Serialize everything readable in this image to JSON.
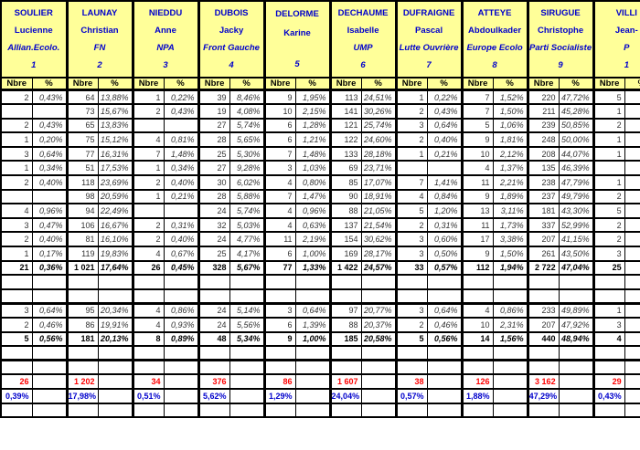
{
  "colors": {
    "header_background": "#FFFF99",
    "header_text": "#0000CC",
    "summary_count_text": "#FF0000",
    "summary_pct_text": "#0000CC",
    "grid": "#000000"
  },
  "table": {
    "subheaders": [
      "Nbre",
      "%"
    ],
    "candidates": [
      {
        "name": "SOULIER",
        "firstname": "Lucienne",
        "party": "Allian.Ecolo.",
        "number": "1"
      },
      {
        "name": "LAUNAY",
        "firstname": "Christian",
        "party": "FN",
        "number": "2"
      },
      {
        "name": "NIEDDU",
        "firstname": "Anne",
        "party": "NPA",
        "number": "3"
      },
      {
        "name": "DUBOIS",
        "firstname": "Jacky",
        "party": "Front Gauche",
        "number": "4"
      },
      {
        "name": "DELORME",
        "firstname": "Karine",
        "party": "",
        "number": "5"
      },
      {
        "name": "DECHAUME",
        "firstname": "Isabelle",
        "party": "UMP",
        "number": "6"
      },
      {
        "name": "DUFRAIGNE",
        "firstname": "Pascal",
        "party": "Lutte Ouvrière",
        "number": "7"
      },
      {
        "name": "ATTEYE",
        "firstname": "Abdoulkader",
        "party": "Europe Ecolo",
        "number": "8"
      },
      {
        "name": "SIRUGUE",
        "firstname": "Christophe",
        "party": "Parti Socialiste",
        "number": "9"
      },
      {
        "name": "VILLI",
        "firstname": "Jean-",
        "party": "P",
        "number": "1"
      }
    ],
    "rows": [
      {
        "style": "data",
        "cells": [
          [
            "2",
            "0,43%"
          ],
          [
            "64",
            "13,88%"
          ],
          [
            "1",
            "0,22%"
          ],
          [
            "39",
            "8,46%"
          ],
          [
            "9",
            "1,95%"
          ],
          [
            "113",
            "24,51%"
          ],
          [
            "1",
            "0,22%"
          ],
          [
            "7",
            "1,52%"
          ],
          [
            "220",
            "47,72%"
          ],
          [
            "5",
            ""
          ]
        ]
      },
      {
        "style": "data",
        "cells": [
          [
            "",
            ""
          ],
          [
            "73",
            "15,67%"
          ],
          [
            "2",
            "0,43%"
          ],
          [
            "19",
            "4,08%"
          ],
          [
            "10",
            "2,15%"
          ],
          [
            "141",
            "30,26%"
          ],
          [
            "2",
            "0,43%"
          ],
          [
            "7",
            "1,50%"
          ],
          [
            "211",
            "45,28%"
          ],
          [
            "1",
            ""
          ]
        ]
      },
      {
        "style": "data",
        "cells": [
          [
            "2",
            "0,43%"
          ],
          [
            "65",
            "13,83%"
          ],
          [
            "",
            ""
          ],
          [
            "27",
            "5,74%"
          ],
          [
            "6",
            "1,28%"
          ],
          [
            "121",
            "25,74%"
          ],
          [
            "3",
            "0,64%"
          ],
          [
            "5",
            "1,06%"
          ],
          [
            "239",
            "50,85%"
          ],
          [
            "2",
            ""
          ]
        ]
      },
      {
        "style": "data",
        "cells": [
          [
            "1",
            "0,20%"
          ],
          [
            "75",
            "15,12%"
          ],
          [
            "4",
            "0,81%"
          ],
          [
            "28",
            "5,65%"
          ],
          [
            "6",
            "1,21%"
          ],
          [
            "122",
            "24,60%"
          ],
          [
            "2",
            "0,40%"
          ],
          [
            "9",
            "1,81%"
          ],
          [
            "248",
            "50,00%"
          ],
          [
            "1",
            ""
          ]
        ]
      },
      {
        "style": "data",
        "cells": [
          [
            "3",
            "0,64%"
          ],
          [
            "77",
            "16,31%"
          ],
          [
            "7",
            "1,48%"
          ],
          [
            "25",
            "5,30%"
          ],
          [
            "7",
            "1,48%"
          ],
          [
            "133",
            "28,18%"
          ],
          [
            "1",
            "0,21%"
          ],
          [
            "10",
            "2,12%"
          ],
          [
            "208",
            "44,07%"
          ],
          [
            "1",
            ""
          ]
        ]
      },
      {
        "style": "data",
        "cells": [
          [
            "1",
            "0,34%"
          ],
          [
            "51",
            "17,53%"
          ],
          [
            "1",
            "0,34%"
          ],
          [
            "27",
            "9,28%"
          ],
          [
            "3",
            "1,03%"
          ],
          [
            "69",
            "23,71%"
          ],
          [
            "",
            ""
          ],
          [
            "4",
            "1,37%"
          ],
          [
            "135",
            "46,39%"
          ],
          [
            "",
            ""
          ]
        ]
      },
      {
        "style": "data",
        "cells": [
          [
            "2",
            "0,40%"
          ],
          [
            "118",
            "23,69%"
          ],
          [
            "2",
            "0,40%"
          ],
          [
            "30",
            "6,02%"
          ],
          [
            "4",
            "0,80%"
          ],
          [
            "85",
            "17,07%"
          ],
          [
            "7",
            "1,41%"
          ],
          [
            "11",
            "2,21%"
          ],
          [
            "238",
            "47,79%"
          ],
          [
            "1",
            ""
          ]
        ]
      },
      {
        "style": "data",
        "cells": [
          [
            "",
            ""
          ],
          [
            "98",
            "20,59%"
          ],
          [
            "1",
            "0,21%"
          ],
          [
            "28",
            "5,88%"
          ],
          [
            "7",
            "1,47%"
          ],
          [
            "90",
            "18,91%"
          ],
          [
            "4",
            "0,84%"
          ],
          [
            "9",
            "1,89%"
          ],
          [
            "237",
            "49,79%"
          ],
          [
            "2",
            ""
          ]
        ]
      },
      {
        "style": "data",
        "cells": [
          [
            "4",
            "0,96%"
          ],
          [
            "94",
            "22,49%"
          ],
          [
            "",
            ""
          ],
          [
            "24",
            "5,74%"
          ],
          [
            "4",
            "0,96%"
          ],
          [
            "88",
            "21,05%"
          ],
          [
            "5",
            "1,20%"
          ],
          [
            "13",
            "3,11%"
          ],
          [
            "181",
            "43,30%"
          ],
          [
            "5",
            ""
          ]
        ]
      },
      {
        "style": "data",
        "cells": [
          [
            "3",
            "0,47%"
          ],
          [
            "106",
            "16,67%"
          ],
          [
            "2",
            "0,31%"
          ],
          [
            "32",
            "5,03%"
          ],
          [
            "4",
            "0,63%"
          ],
          [
            "137",
            "21,54%"
          ],
          [
            "2",
            "0,31%"
          ],
          [
            "11",
            "1,73%"
          ],
          [
            "337",
            "52,99%"
          ],
          [
            "2",
            ""
          ]
        ]
      },
      {
        "style": "data",
        "cells": [
          [
            "2",
            "0,40%"
          ],
          [
            "81",
            "16,10%"
          ],
          [
            "2",
            "0,40%"
          ],
          [
            "24",
            "4,77%"
          ],
          [
            "11",
            "2,19%"
          ],
          [
            "154",
            "30,62%"
          ],
          [
            "3",
            "0,60%"
          ],
          [
            "17",
            "3,38%"
          ],
          [
            "207",
            "41,15%"
          ],
          [
            "2",
            ""
          ]
        ]
      },
      {
        "style": "data",
        "cells": [
          [
            "1",
            "0,17%"
          ],
          [
            "119",
            "19,83%"
          ],
          [
            "4",
            "0,67%"
          ],
          [
            "25",
            "4,17%"
          ],
          [
            "6",
            "1,00%"
          ],
          [
            "169",
            "28,17%"
          ],
          [
            "3",
            "0,50%"
          ],
          [
            "9",
            "1,50%"
          ],
          [
            "261",
            "43,50%"
          ],
          [
            "3",
            ""
          ]
        ]
      },
      {
        "style": "total",
        "cells": [
          [
            "21",
            "0,36%"
          ],
          [
            "1 021",
            "17,64%"
          ],
          [
            "26",
            "0,45%"
          ],
          [
            "328",
            "5,67%"
          ],
          [
            "77",
            "1,33%"
          ],
          [
            "1 422",
            "24,57%"
          ],
          [
            "33",
            "0,57%"
          ],
          [
            "112",
            "1,94%"
          ],
          [
            "2 722",
            "47,04%"
          ],
          [
            "25",
            ""
          ]
        ]
      },
      {
        "style": "empty",
        "cells": []
      },
      {
        "style": "empty",
        "cells": []
      },
      {
        "style": "data",
        "thick_top": true,
        "cells": [
          [
            "3",
            "0,64%"
          ],
          [
            "95",
            "20,34%"
          ],
          [
            "4",
            "0,86%"
          ],
          [
            "24",
            "5,14%"
          ],
          [
            "3",
            "0,64%"
          ],
          [
            "97",
            "20,77%"
          ],
          [
            "3",
            "0,64%"
          ],
          [
            "4",
            "0,86%"
          ],
          [
            "233",
            "49,89%"
          ],
          [
            "1",
            ""
          ]
        ]
      },
      {
        "style": "data",
        "cells": [
          [
            "2",
            "0,46%"
          ],
          [
            "86",
            "19,91%"
          ],
          [
            "4",
            "0,93%"
          ],
          [
            "24",
            "5,56%"
          ],
          [
            "6",
            "1,39%"
          ],
          [
            "88",
            "20,37%"
          ],
          [
            "2",
            "0,46%"
          ],
          [
            "10",
            "2,31%"
          ],
          [
            "207",
            "47,92%"
          ],
          [
            "3",
            ""
          ]
        ]
      },
      {
        "style": "total",
        "cells": [
          [
            "5",
            "0,56%"
          ],
          [
            "181",
            "20,13%"
          ],
          [
            "8",
            "0,89%"
          ],
          [
            "48",
            "5,34%"
          ],
          [
            "9",
            "1,00%"
          ],
          [
            "185",
            "20,58%"
          ],
          [
            "5",
            "0,56%"
          ],
          [
            "14",
            "1,56%"
          ],
          [
            "440",
            "48,94%"
          ],
          [
            "4",
            ""
          ]
        ]
      },
      {
        "style": "empty",
        "cells": []
      },
      {
        "style": "empty",
        "thick_top": true,
        "cells": []
      },
      {
        "style": "summary_count",
        "cells": [
          [
            "26",
            ""
          ],
          [
            "1 202",
            ""
          ],
          [
            "34",
            ""
          ],
          [
            "376",
            ""
          ],
          [
            "86",
            ""
          ],
          [
            "1 607",
            ""
          ],
          [
            "38",
            ""
          ],
          [
            "126",
            ""
          ],
          [
            "3 162",
            ""
          ],
          [
            "29",
            ""
          ]
        ]
      },
      {
        "style": "summary_pct",
        "cells": [
          [
            "0,39%",
            ""
          ],
          [
            "17,98%",
            ""
          ],
          [
            "0,51%",
            ""
          ],
          [
            "5,62%",
            ""
          ],
          [
            "1,29%",
            ""
          ],
          [
            "24,04%",
            ""
          ],
          [
            "0,57%",
            ""
          ],
          [
            "1,88%",
            ""
          ],
          [
            "47,29%",
            ""
          ],
          [
            "0,43%",
            ""
          ]
        ]
      },
      {
        "style": "empty",
        "cells": []
      }
    ]
  }
}
